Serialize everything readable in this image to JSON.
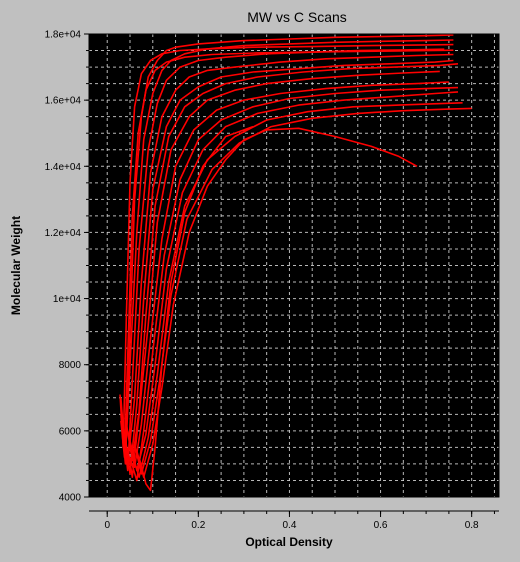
{
  "chart_data": {
    "type": "line",
    "title": "MW vs C Scans",
    "xlabel": "Optical Density",
    "ylabel": "Molecular Weight",
    "xlim": [
      -0.04,
      0.86
    ],
    "ylim": [
      4000,
      18000
    ],
    "grid": true,
    "background": "#000000",
    "line_color": "#ff0000",
    "grid_color": "#d8d8d8",
    "x_ticks": [
      {
        "value": 0,
        "label": "0"
      },
      {
        "value": 0.2,
        "label": "0.2"
      },
      {
        "value": 0.4,
        "label": "0.4"
      },
      {
        "value": 0.6,
        "label": "0.6"
      },
      {
        "value": 0.8,
        "label": "0.8"
      }
    ],
    "y_ticks": [
      {
        "value": 4000,
        "label": "4000"
      },
      {
        "value": 6000,
        "label": "6000"
      },
      {
        "value": 8000,
        "label": "8000"
      },
      {
        "value": 10000,
        "label": "1e+04"
      },
      {
        "value": 12000,
        "label": "1.2e+04"
      },
      {
        "value": 14000,
        "label": "1.4e+04"
      },
      {
        "value": 16000,
        "label": "1.6e+04"
      },
      {
        "value": 18000,
        "label": "1.8e+04"
      }
    ],
    "series": [
      {
        "x": [
          0.03,
          0.04,
          0.05,
          0.06,
          0.075,
          0.09,
          0.11,
          0.13,
          0.15,
          0.2,
          0.3,
          0.4,
          0.5,
          0.6,
          0.7,
          0.76
        ],
        "y": [
          6500,
          5000,
          9000,
          13000,
          15500,
          16700,
          17200,
          17500,
          17600,
          17700,
          17800,
          17850,
          17900,
          17920,
          17950,
          17970
        ]
      },
      {
        "x": [
          0.03,
          0.04,
          0.05,
          0.065,
          0.08,
          0.1,
          0.12,
          0.14,
          0.17,
          0.22,
          0.3,
          0.4,
          0.5,
          0.6,
          0.7,
          0.76
        ],
        "y": [
          7000,
          5200,
          8000,
          12000,
          14800,
          16200,
          16900,
          17200,
          17400,
          17550,
          17650,
          17700,
          17750,
          17780,
          17800,
          17820
        ]
      },
      {
        "x": [
          0.035,
          0.045,
          0.055,
          0.07,
          0.09,
          0.11,
          0.13,
          0.16,
          0.2,
          0.26,
          0.35,
          0.45,
          0.55,
          0.65,
          0.74
        ],
        "y": [
          6000,
          4800,
          7500,
          11500,
          14500,
          15900,
          16600,
          17000,
          17200,
          17300,
          17400,
          17450,
          17500,
          17520,
          17540
        ]
      },
      {
        "x": [
          0.035,
          0.045,
          0.06,
          0.075,
          0.095,
          0.12,
          0.15,
          0.18,
          0.22,
          0.28,
          0.38,
          0.48,
          0.58,
          0.68,
          0.76
        ],
        "y": [
          6200,
          5000,
          7000,
          10500,
          13800,
          15500,
          16300,
          16700,
          16900,
          17000,
          17150,
          17250,
          17300,
          17350,
          17380
        ]
      },
      {
        "x": [
          0.04,
          0.05,
          0.065,
          0.08,
          0.1,
          0.13,
          0.16,
          0.2,
          0.25,
          0.32,
          0.42,
          0.52,
          0.62,
          0.72,
          0.76
        ],
        "y": [
          5800,
          4700,
          6800,
          10000,
          13300,
          15200,
          16000,
          16400,
          16700,
          16850,
          16950,
          17050,
          17100,
          17150,
          17200
        ]
      },
      {
        "x": [
          0.04,
          0.055,
          0.07,
          0.085,
          0.105,
          0.135,
          0.17,
          0.21,
          0.26,
          0.33,
          0.43,
          0.53,
          0.63,
          0.73,
          0.77
        ],
        "y": [
          6400,
          5100,
          6600,
          9500,
          12800,
          14900,
          15800,
          16200,
          16500,
          16700,
          16850,
          16950,
          17000,
          17050,
          17100
        ]
      },
      {
        "x": [
          0.045,
          0.055,
          0.07,
          0.09,
          0.11,
          0.14,
          0.18,
          0.22,
          0.28,
          0.35,
          0.45,
          0.55,
          0.65,
          0.73
        ],
        "y": [
          5500,
          4600,
          6500,
          9200,
          12300,
          14500,
          15500,
          16000,
          16300,
          16500,
          16650,
          16750,
          16820,
          16870
        ]
      },
      {
        "x": [
          0.045,
          0.06,
          0.075,
          0.095,
          0.12,
          0.15,
          0.19,
          0.24,
          0.3,
          0.38,
          0.48,
          0.58,
          0.68,
          0.75
        ],
        "y": [
          6000,
          4900,
          6200,
          8800,
          11800,
          14000,
          15100,
          15700,
          16000,
          16200,
          16350,
          16450,
          16500,
          16550
        ]
      },
      {
        "x": [
          0.05,
          0.065,
          0.08,
          0.1,
          0.125,
          0.16,
          0.2,
          0.25,
          0.32,
          0.4,
          0.5,
          0.6,
          0.7,
          0.77
        ],
        "y": [
          5200,
          4500,
          6000,
          8400,
          11300,
          13600,
          14800,
          15400,
          15800,
          16050,
          16200,
          16300,
          16350,
          16380
        ]
      },
      {
        "x": [
          0.05,
          0.065,
          0.085,
          0.105,
          0.13,
          0.165,
          0.21,
          0.26,
          0.33,
          0.42,
          0.52,
          0.62,
          0.72,
          0.77
        ],
        "y": [
          5700,
          4800,
          5900,
          8000,
          10900,
          13200,
          14500,
          15200,
          15600,
          15850,
          16000,
          16100,
          16200,
          16250
        ]
      },
      {
        "x": [
          0.055,
          0.07,
          0.09,
          0.11,
          0.135,
          0.17,
          0.22,
          0.28,
          0.35,
          0.44,
          0.54,
          0.64,
          0.74,
          0.78
        ],
        "y": [
          5300,
          4600,
          5800,
          7700,
          10500,
          12800,
          14200,
          14900,
          15400,
          15650,
          15800,
          15850,
          15900,
          15920
        ]
      },
      {
        "x": [
          0.06,
          0.075,
          0.095,
          0.115,
          0.14,
          0.175,
          0.23,
          0.29,
          0.36,
          0.45,
          0.55,
          0.65,
          0.75,
          0.8
        ],
        "y": [
          5600,
          4700,
          5700,
          7500,
          10100,
          12400,
          13900,
          14700,
          15200,
          15450,
          15600,
          15680,
          15730,
          15750
        ]
      },
      {
        "x": [
          0.065,
          0.08,
          0.1,
          0.12,
          0.145,
          0.18,
          0.22,
          0.26,
          0.3,
          0.35,
          0.42,
          0.5,
          0.58,
          0.64,
          0.68
        ],
        "y": [
          5400,
          4600,
          5600,
          7300,
          9800,
          12000,
          13400,
          14200,
          14800,
          15100,
          15150,
          14900,
          14600,
          14300,
          14000
        ]
      },
      {
        "x": [
          0.07,
          0.085,
          0.095,
          0.105,
          0.12,
          0.14,
          0.17,
          0.21,
          0.26,
          0.32
        ],
        "y": [
          5200,
          4400,
          4200,
          5500,
          8000,
          10500,
          12600,
          14000,
          14900,
          15200
        ]
      },
      {
        "x": [
          0.028,
          0.035,
          0.042,
          0.05,
          0.06,
          0.075,
          0.095,
          0.12,
          0.16,
          0.22,
          0.32,
          0.45,
          0.58,
          0.7,
          0.76
        ],
        "y": [
          7100,
          5500,
          9500,
          13500,
          15800,
          16800,
          17200,
          17400,
          17500,
          17550,
          17600,
          17620,
          17650,
          17670,
          17680
        ]
      },
      {
        "x": [
          0.03,
          0.038,
          0.046,
          0.055,
          0.068,
          0.085,
          0.105,
          0.13,
          0.17,
          0.23,
          0.33,
          0.46,
          0.59,
          0.72,
          0.76
        ],
        "y": [
          6300,
          5200,
          8700,
          12500,
          15000,
          16300,
          16900,
          17150,
          17300,
          17380,
          17430,
          17460,
          17480,
          17500,
          17510
        ]
      }
    ]
  }
}
